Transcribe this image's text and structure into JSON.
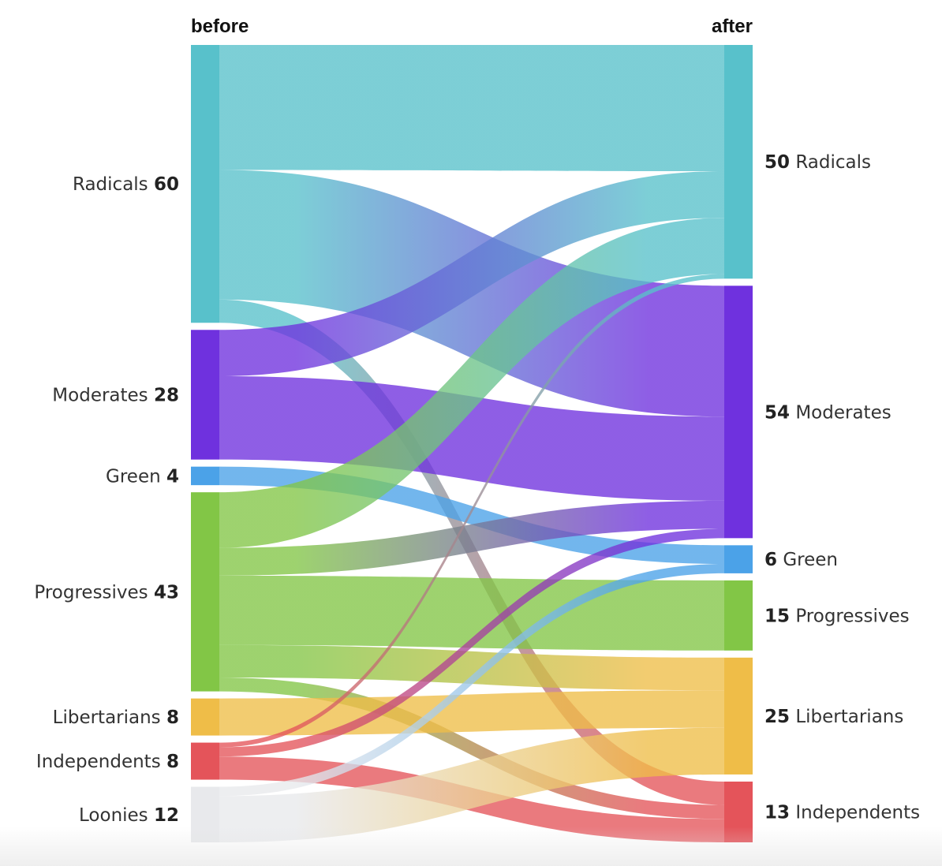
{
  "chart_data": {
    "type": "sankey",
    "columns": {
      "left": "before",
      "right": "after"
    },
    "left_nodes": [
      {
        "name": "Radicals",
        "value": 60,
        "color": "#58c1cb"
      },
      {
        "name": "Moderates",
        "value": 28,
        "color": "#6f31de"
      },
      {
        "name": "Green",
        "value": 4,
        "color": "#4ba2e8"
      },
      {
        "name": "Progressives",
        "value": 43,
        "color": "#82c646"
      },
      {
        "name": "Libertarians",
        "value": 8,
        "color": "#efbd48"
      },
      {
        "name": "Independents",
        "value": 8,
        "color": "#e4545a"
      },
      {
        "name": "Loonies",
        "value": 12,
        "color": "#e8e9ec"
      }
    ],
    "right_nodes": [
      {
        "name": "Radicals",
        "value": 50,
        "color": "#58c1cb"
      },
      {
        "name": "Moderates",
        "value": 54,
        "color": "#6f31de"
      },
      {
        "name": "Green",
        "value": 6,
        "color": "#4ba2e8"
      },
      {
        "name": "Progressives",
        "value": 15,
        "color": "#82c646"
      },
      {
        "name": "Libertarians",
        "value": 25,
        "color": "#efbd48"
      },
      {
        "name": "Independents",
        "value": 13,
        "color": "#e4545a"
      }
    ],
    "flows": [
      {
        "from": "Radicals",
        "to": "Radicals",
        "value": 27
      },
      {
        "from": "Radicals",
        "to": "Moderates",
        "value": 28
      },
      {
        "from": "Radicals",
        "to": "Independents",
        "value": 5
      },
      {
        "from": "Moderates",
        "to": "Radicals",
        "value": 10
      },
      {
        "from": "Moderates",
        "to": "Moderates",
        "value": 18
      },
      {
        "from": "Green",
        "to": "Green",
        "value": 4
      },
      {
        "from": "Progressives",
        "to": "Radicals",
        "value": 12
      },
      {
        "from": "Progressives",
        "to": "Moderates",
        "value": 6
      },
      {
        "from": "Progressives",
        "to": "Progressives",
        "value": 15
      },
      {
        "from": "Progressives",
        "to": "Libertarians",
        "value": 7
      },
      {
        "from": "Progressives",
        "to": "Independents",
        "value": 3
      },
      {
        "from": "Libertarians",
        "to": "Libertarians",
        "value": 8
      },
      {
        "from": "Independents",
        "to": "Radicals",
        "value": 1
      },
      {
        "from": "Independents",
        "to": "Moderates",
        "value": 2
      },
      {
        "from": "Independents",
        "to": "Independents",
        "value": 5
      },
      {
        "from": "Loonies",
        "to": "Moderates",
        "value": 0
      },
      {
        "from": "Loonies",
        "to": "Green",
        "value": 2
      },
      {
        "from": "Loonies",
        "to": "Libertarians",
        "value": 10
      }
    ]
  }
}
